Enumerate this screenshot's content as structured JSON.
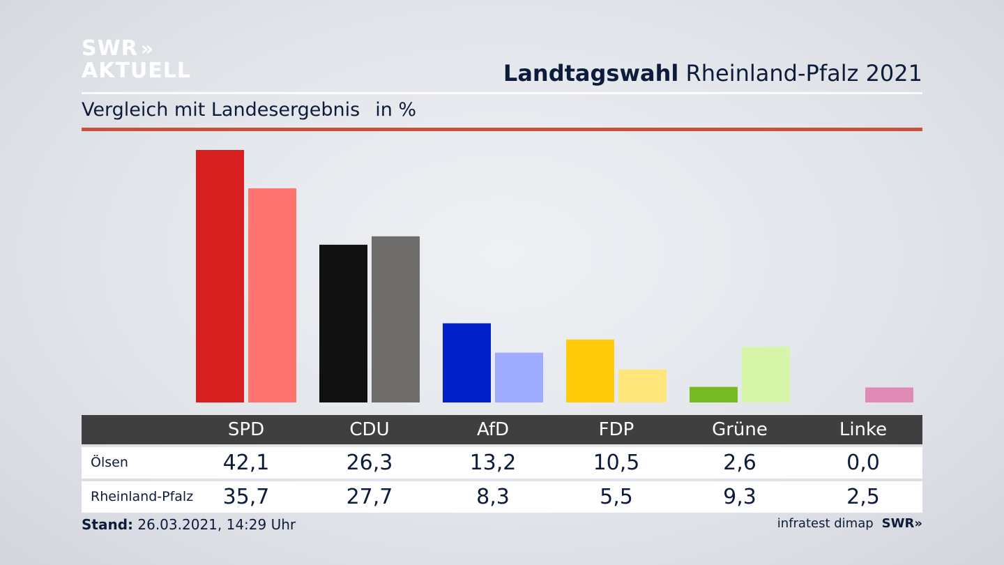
{
  "logo": {
    "line1": "SWR",
    "line2": "AKTUELL",
    "chevrons": "»",
    "name": "swr-aktuell-logo"
  },
  "header": {
    "title_bold": "Landtagswahl",
    "title_rest": "Rheinland-Pfalz 2021",
    "subtitle": "Vergleich mit Landesergebnis",
    "unit": "in %"
  },
  "colors": {
    "SPD": [
      "#d61f1f",
      "#ff746e"
    ],
    "CDU": [
      "#111111",
      "#6e6d6b"
    ],
    "AfD": [
      "#0021c9",
      "#9eabff"
    ],
    "FDP": [
      "#ffcc0b",
      "#ffe57a"
    ],
    "Grüne": [
      "#76b923",
      "#d7f5a8"
    ],
    "Linke": [
      "#c8245e",
      "#e08bb5"
    ],
    "accent_line": "#c9503f",
    "table_header": "#3f3f3f"
  },
  "chart_data": {
    "type": "bar",
    "categories": [
      "SPD",
      "CDU",
      "AfD",
      "FDP",
      "Grüne",
      "Linke"
    ],
    "series": [
      {
        "name": "Ölsen",
        "values": [
          42.1,
          26.3,
          13.2,
          10.5,
          2.6,
          0.0
        ]
      },
      {
        "name": "Rheinland-Pfalz",
        "values": [
          35.7,
          27.7,
          8.3,
          5.5,
          9.3,
          2.5
        ]
      }
    ],
    "title": "Landtagswahl Rheinland-Pfalz 2021",
    "subtitle": "Vergleich mit Landesergebnis",
    "ylabel": "in %",
    "ylim": [
      0,
      42.1
    ],
    "grid": false
  },
  "table": {
    "rows": [
      {
        "label": "Ölsen",
        "values": [
          "42,1",
          "26,3",
          "13,2",
          "10,5",
          "2,6",
          "0,0"
        ]
      },
      {
        "label": "Rheinland-Pfalz",
        "values": [
          "35,7",
          "27,7",
          "8,3",
          "5,5",
          "9,3",
          "2,5"
        ]
      }
    ]
  },
  "footer": {
    "stand_label": "Stand:",
    "stand_value": "26.03.2021, 14:29 Uhr",
    "source": "infratest dimap",
    "brand": "SWR",
    "brand_chevrons": "»"
  }
}
